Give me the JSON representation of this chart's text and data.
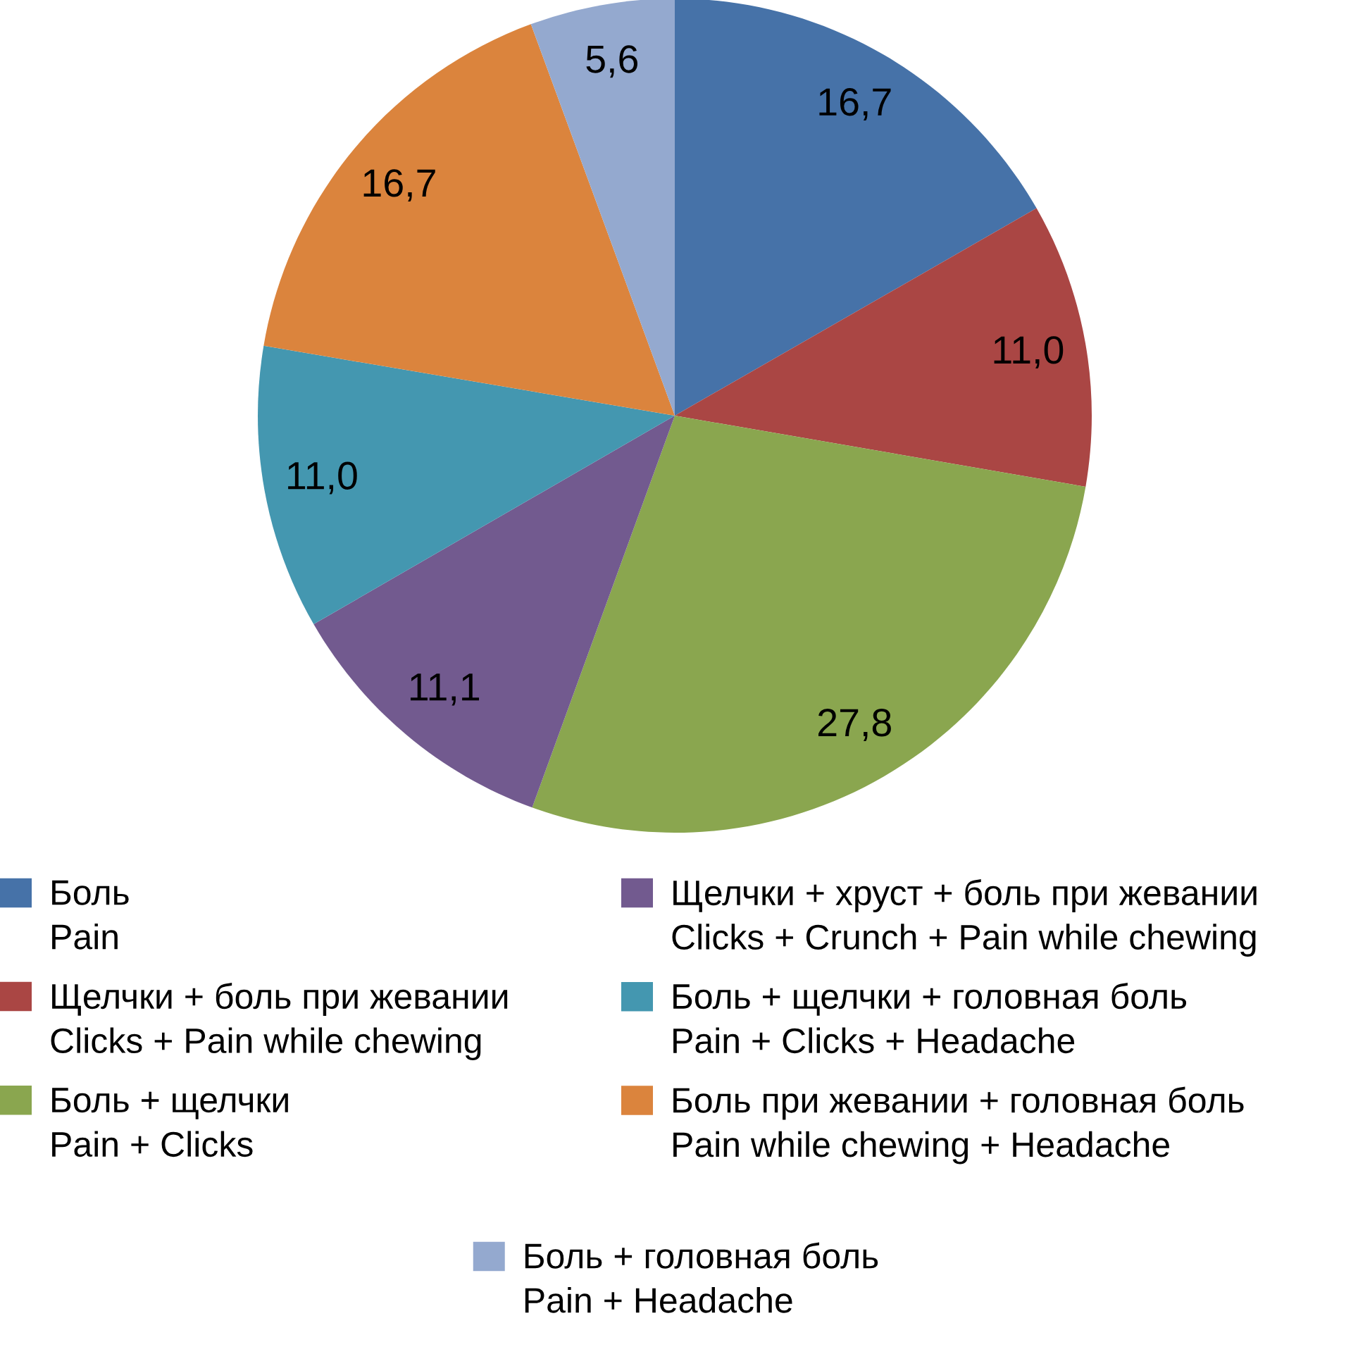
{
  "chart_data": {
    "type": "pie",
    "categories": [
      "Боль\nPain",
      "Щелчки + боль при жевании\nClicks + Pain while chewing",
      "Боль + щелчки\nPain + Clicks",
      "Щелчки + хруст + боль при жевании\nClicks + Crunch + Pain while chewing",
      "Боль + щелчки + головная боль\nPain + Clicks + Headache",
      "Боль при жевании + головная боль\nPain while chewing + Headache",
      "Боль + головная боль\nPain + Headache"
    ],
    "values": [
      16.7,
      11.0,
      27.8,
      11.1,
      11.0,
      16.7,
      5.6
    ],
    "value_labels": [
      "16,7",
      "11,0",
      "27,8",
      "11,1",
      "11,0",
      "16,7",
      "5,6"
    ],
    "colors": [
      "#4672a8",
      "#aa4644",
      "#8aa64f",
      "#725a8f",
      "#4497b0",
      "#db843d",
      "#94a9cf"
    ],
    "legend": "bottom"
  }
}
